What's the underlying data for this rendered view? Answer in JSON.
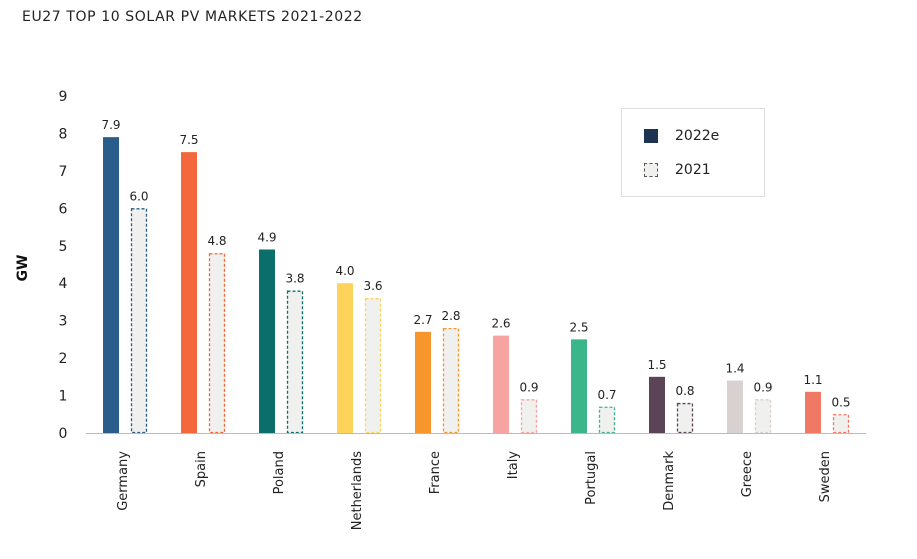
{
  "chart_data": {
    "type": "bar",
    "title": "EU27 TOP 10 SOLAR PV MARKETS 2021-2022",
    "ylabel": "GW",
    "ylim": [
      0,
      9
    ],
    "yticks": [
      0,
      1,
      2,
      3,
      4,
      5,
      6,
      7,
      8,
      9
    ],
    "categories": [
      "Germany",
      "Spain",
      "Poland",
      "Netherlands",
      "France",
      "Italy",
      "Portugal",
      "Denmark",
      "Greece",
      "Sweden"
    ],
    "category_colors": [
      "#2a5d8c",
      "#f2673c",
      "#0c6e6b",
      "#fdd35c",
      "#f7962d",
      "#f6a3a1",
      "#3bb68a",
      "#5b4458",
      "#d8d1cf",
      "#f07965"
    ],
    "series": [
      {
        "name": "2022e",
        "values": [
          7.9,
          7.5,
          4.9,
          4.0,
          2.7,
          2.6,
          2.5,
          1.5,
          1.4,
          1.1
        ],
        "labels": [
          "7.9",
          "7.5",
          "4.9",
          "4.0",
          "2.7",
          "2.6",
          "2.5",
          "1.5",
          "1.4",
          "1.1"
        ]
      },
      {
        "name": "2021",
        "values": [
          6.0,
          4.8,
          3.8,
          3.6,
          2.8,
          0.9,
          0.7,
          0.8,
          0.9,
          0.5
        ],
        "labels": [
          "6.0",
          "4.8",
          "3.8",
          "3.6",
          "2.8",
          "0.9",
          "0.7",
          "0.8",
          "0.9",
          "0.5"
        ]
      }
    ],
    "legend": {
      "position": "top-right"
    },
    "grid": false
  },
  "legend_colors": {
    "2022e": "#1c3351",
    "2021": "#f0f0ef",
    "2021_border": "#555555"
  }
}
